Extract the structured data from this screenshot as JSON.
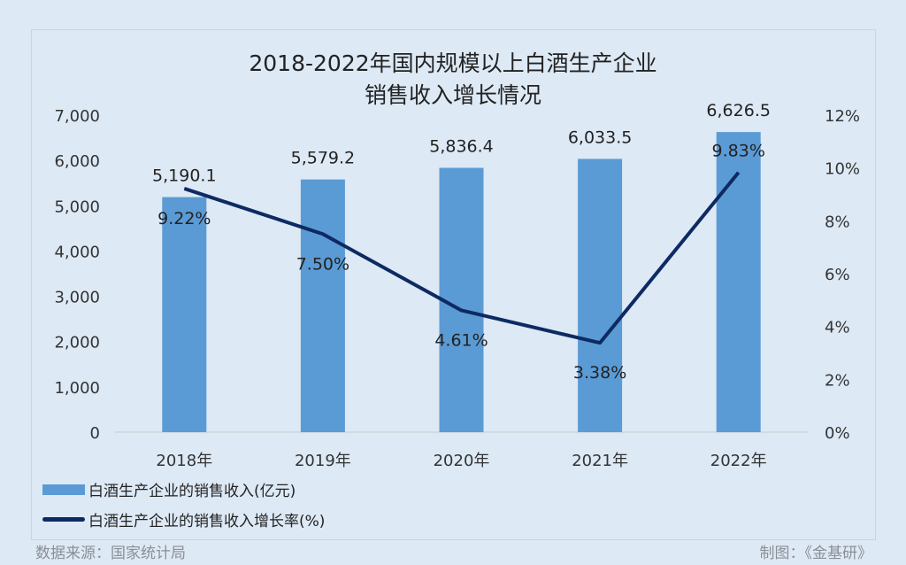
{
  "chart_data": {
    "type": "bar+line",
    "title": [
      "2018-2022年国内规模以上白酒生产企业",
      "销售收入增长情况"
    ],
    "categories": [
      "2018年",
      "2019年",
      "2020年",
      "2021年",
      "2022年"
    ],
    "series": [
      {
        "name": "白酒生产企业的销售收入(亿元)",
        "type": "bar",
        "axis": "left",
        "color": "#5b9bd5",
        "values": [
          5190.1,
          5579.2,
          5836.4,
          6033.5,
          6626.5
        ],
        "labels": [
          "5,190.1",
          "5,579.2",
          "5,836.4",
          "6,033.5",
          "6,626.5"
        ]
      },
      {
        "name": "白酒生产企业的销售收入增长率(%)",
        "type": "line",
        "axis": "right",
        "color": "#0d2a62",
        "values": [
          9.22,
          7.5,
          4.61,
          3.38,
          9.83
        ],
        "labels": [
          "9.22%",
          "7.50%",
          "4.61%",
          "3.38%",
          "9.83%"
        ]
      }
    ],
    "left_axis": {
      "ylim": [
        0,
        7000
      ],
      "ticks": [
        "0",
        "1,000",
        "2,000",
        "3,000",
        "4,000",
        "5,000",
        "6,000",
        "7,000"
      ]
    },
    "right_axis": {
      "ylim": [
        0,
        12
      ],
      "ticks": [
        "0%",
        "2%",
        "4%",
        "6%",
        "8%",
        "10%",
        "12%"
      ]
    },
    "grid": false,
    "legend": "bottom-left"
  },
  "footer": {
    "source": "数据来源：国家统计局",
    "credit": "制图：《金基研》"
  },
  "background": "#dde9f5"
}
